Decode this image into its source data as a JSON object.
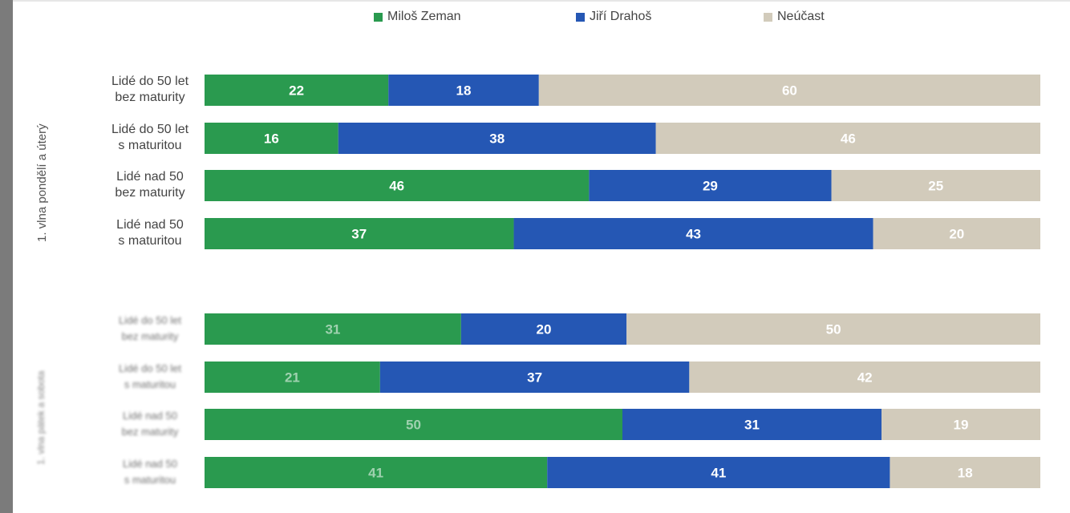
{
  "chart_data": {
    "type": "bar",
    "orientation": "horizontal",
    "stacked": true,
    "stack_total": 100,
    "legend_position": "top",
    "grid": false,
    "title": "",
    "xlabel": "",
    "ylabel": "",
    "series": [
      {
        "name": "Miloš Zeman",
        "color": "#2a9a4f"
      },
      {
        "name": "Jiří Drahoš",
        "color": "#2557b4"
      },
      {
        "name": "Neúčast",
        "color": "#d2cbbb"
      }
    ],
    "groups": [
      {
        "label": "1. vlna pondělí a úterý",
        "label_blurred": false,
        "rows": [
          {
            "label_lines": [
              "Lidé do 50 let",
              "bez maturity"
            ],
            "values": [
              22,
              18,
              60
            ]
          },
          {
            "label_lines": [
              "Lidé do 50 let",
              "s maturitou"
            ],
            "values": [
              16,
              38,
              46
            ]
          },
          {
            "label_lines": [
              "Lidé nad 50",
              "bez maturity"
            ],
            "values": [
              46,
              29,
              25
            ]
          },
          {
            "label_lines": [
              "Lidé nad 50",
              "s maturitou"
            ],
            "values": [
              37,
              43,
              20
            ]
          }
        ]
      },
      {
        "label": "1. vlna pátek a sobota",
        "label_blurred": true,
        "rows": [
          {
            "label_lines": [
              "Lidé do 50 let",
              "bez maturity"
            ],
            "values": [
              31,
              20,
              50
            ]
          },
          {
            "label_lines": [
              "Lidé do 50 let",
              "s maturitou"
            ],
            "values": [
              21,
              37,
              42
            ]
          },
          {
            "label_lines": [
              "Lidé nad 50",
              "bez maturity"
            ],
            "values": [
              50,
              31,
              19
            ]
          },
          {
            "label_lines": [
              "Lidé nad 50",
              "s maturitou"
            ],
            "values": [
              41,
              41,
              18
            ]
          }
        ]
      }
    ]
  }
}
